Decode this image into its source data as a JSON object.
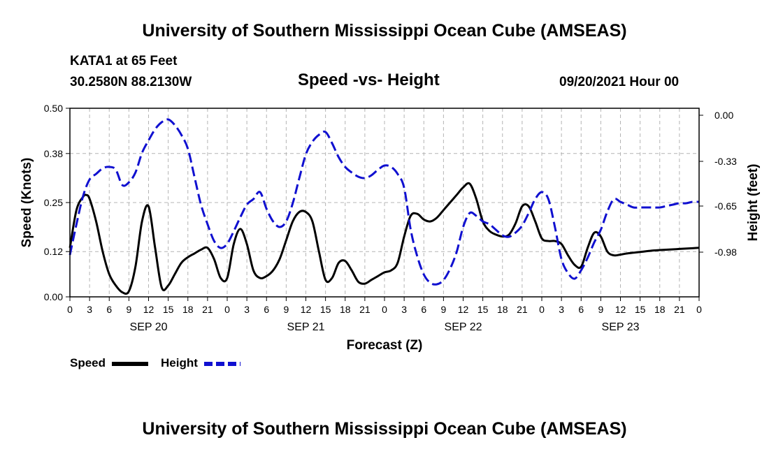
{
  "header": {
    "title": "University of Southern Mississippi Ocean Cube (AMSEAS)",
    "station": "KATA1 at 65 Feet",
    "location": "30.2580N  88.2130W",
    "subtitle": "Speed -vs- Height",
    "datetime": "09/20/2021 Hour 00"
  },
  "footer": {
    "title": "University of Southern Mississippi Ocean Cube (AMSEAS)"
  },
  "legend": {
    "speed_label": "Speed",
    "height_label": "Height"
  },
  "colors": {
    "speed": "#000000",
    "height": "#1010d0",
    "grid": "#b4b4b4"
  },
  "chart_data": {
    "type": "line",
    "title": "Speed -vs- Height",
    "xlabel": "Forecast (Z)",
    "ylabel": "Speed (Knots)",
    "y2label": "Height (feet)",
    "xlim": [
      0,
      96
    ],
    "ylim": [
      0,
      0.5
    ],
    "y2lim": [
      -1.3,
      0.05
    ],
    "grid": true,
    "x_ticks": [
      0,
      3,
      6,
      9,
      12,
      15,
      18,
      21,
      24,
      27,
      30,
      33,
      36,
      39,
      42,
      45,
      48,
      51,
      54,
      57,
      60,
      63,
      66,
      69,
      72,
      75,
      78,
      81,
      84,
      87,
      90,
      93,
      96
    ],
    "x_tick_labels": [
      "0",
      "3",
      "6",
      "9",
      "12",
      "15",
      "18",
      "21",
      "0",
      "3",
      "6",
      "9",
      "12",
      "15",
      "18",
      "21",
      "0",
      "3",
      "6",
      "9",
      "12",
      "15",
      "18",
      "21",
      "0",
      "3",
      "6",
      "9",
      "12",
      "15",
      "18",
      "21",
      "0"
    ],
    "day_labels": [
      {
        "x": 12,
        "label": "SEP 20"
      },
      {
        "x": 36,
        "label": "SEP 21"
      },
      {
        "x": 60,
        "label": "SEP 22"
      },
      {
        "x": 84,
        "label": "SEP 23"
      }
    ],
    "y_ticks": [
      0.0,
      0.12,
      0.25,
      0.38,
      0.5
    ],
    "y_tick_labels": [
      "0.00",
      "0.12",
      "0.25",
      "0.38",
      "0.50"
    ],
    "y2_ticks": [
      0.0,
      -0.33,
      -0.65,
      -0.98
    ],
    "y2_tick_labels": [
      "0.00",
      "-0.33",
      "-0.65",
      "-0.98"
    ],
    "series": [
      {
        "name": "Speed",
        "axis": "left",
        "style": "solid",
        "x": [
          0,
          1,
          2,
          2.5,
          3,
          4,
          5,
          6,
          7,
          8,
          9,
          10,
          11,
          12,
          13,
          14,
          15,
          16,
          17,
          18,
          19,
          20,
          21,
          22,
          23,
          24,
          25,
          26,
          27,
          28,
          29,
          30,
          31,
          32,
          33,
          34,
          35,
          36,
          37,
          38,
          39,
          40,
          41,
          42,
          43,
          44,
          45,
          46,
          47,
          48,
          49,
          50,
          51,
          52,
          53,
          54,
          55,
          56,
          57,
          58,
          59,
          60,
          61,
          62,
          63,
          64,
          65,
          66,
          67,
          68,
          69,
          70,
          71,
          72,
          73,
          74,
          75,
          76,
          77,
          78,
          79,
          80,
          81,
          82,
          83,
          84,
          85,
          86,
          87,
          88,
          89,
          90,
          91,
          92,
          93,
          94,
          95,
          96
        ],
        "y": [
          0.13,
          0.23,
          0.265,
          0.27,
          0.26,
          0.2,
          0.12,
          0.06,
          0.03,
          0.012,
          0.015,
          0.08,
          0.2,
          0.24,
          0.13,
          0.025,
          0.03,
          0.06,
          0.09,
          0.105,
          0.115,
          0.125,
          0.13,
          0.1,
          0.05,
          0.05,
          0.14,
          0.18,
          0.14,
          0.07,
          0.05,
          0.055,
          0.07,
          0.1,
          0.15,
          0.2,
          0.225,
          0.225,
          0.2,
          0.12,
          0.045,
          0.05,
          0.09,
          0.095,
          0.07,
          0.04,
          0.035,
          0.045,
          0.055,
          0.065,
          0.07,
          0.09,
          0.16,
          0.215,
          0.22,
          0.205,
          0.2,
          0.21,
          0.23,
          0.25,
          0.27,
          0.29,
          0.3,
          0.26,
          0.2,
          0.175,
          0.165,
          0.16,
          0.165,
          0.195,
          0.24,
          0.24,
          0.2,
          0.155,
          0.148,
          0.148,
          0.14,
          0.11,
          0.085,
          0.08,
          0.13,
          0.17,
          0.16,
          0.12,
          0.11,
          0.112,
          0.115,
          0.117,
          0.119,
          0.121,
          0.123,
          0.124,
          0.125,
          0.126,
          0.127,
          0.128,
          0.129,
          0.13
        ],
        "_note": ""
      },
      {
        "name": "Height",
        "axis": "right",
        "style": "dashed",
        "x": [
          0,
          1,
          2,
          3,
          4,
          5,
          6,
          7,
          8,
          9,
          10,
          11,
          12,
          13,
          14,
          15,
          16,
          17,
          18,
          19,
          20,
          21,
          22,
          23,
          24,
          25,
          26,
          27,
          28,
          29,
          30,
          31,
          32,
          33,
          34,
          35,
          36,
          37,
          38,
          39,
          40,
          41,
          42,
          43,
          44,
          45,
          46,
          47,
          48,
          49,
          50,
          51,
          52,
          53,
          54,
          55,
          56,
          57,
          58,
          59,
          60,
          61,
          62,
          63,
          64,
          65,
          66,
          67,
          68,
          69,
          70,
          71,
          72,
          73,
          74,
          75,
          76,
          77,
          78,
          79,
          80,
          81,
          82,
          83,
          84,
          85,
          86,
          87,
          88,
          89,
          90,
          91,
          92,
          93,
          94,
          95,
          96
        ],
        "y": [
          -1.0,
          -0.78,
          -0.58,
          -0.46,
          -0.42,
          -0.38,
          -0.37,
          -0.39,
          -0.5,
          -0.48,
          -0.41,
          -0.27,
          -0.18,
          -0.1,
          -0.05,
          -0.03,
          -0.07,
          -0.14,
          -0.24,
          -0.44,
          -0.64,
          -0.78,
          -0.9,
          -0.95,
          -0.92,
          -0.83,
          -0.73,
          -0.64,
          -0.6,
          -0.55,
          -0.67,
          -0.76,
          -0.8,
          -0.76,
          -0.63,
          -0.45,
          -0.28,
          -0.19,
          -0.14,
          -0.12,
          -0.2,
          -0.3,
          -0.37,
          -0.41,
          -0.44,
          -0.45,
          -0.43,
          -0.39,
          -0.36,
          -0.37,
          -0.42,
          -0.52,
          -0.82,
          -1.01,
          -1.14,
          -1.2,
          -1.21,
          -1.18,
          -1.1,
          -0.98,
          -0.8,
          -0.7,
          -0.72,
          -0.76,
          -0.78,
          -0.82,
          -0.86,
          -0.87,
          -0.84,
          -0.79,
          -0.7,
          -0.6,
          -0.55,
          -0.6,
          -0.8,
          -1.03,
          -1.13,
          -1.17,
          -1.11,
          -1.02,
          -0.91,
          -0.82,
          -0.69,
          -0.6,
          -0.62,
          -0.64,
          -0.66,
          -0.66,
          -0.66,
          -0.66,
          -0.66,
          -0.65,
          -0.64,
          -0.63,
          -0.63,
          -0.62,
          -0.62
        ]
      }
    ]
  }
}
